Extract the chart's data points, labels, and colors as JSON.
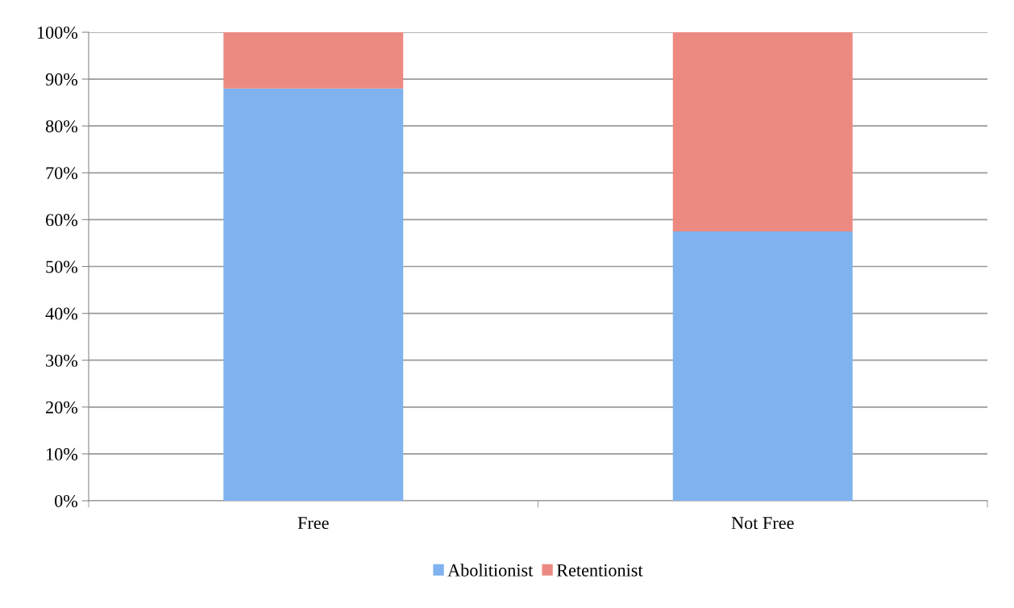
{
  "chart_data": {
    "type": "bar",
    "stacked": true,
    "categories": [
      "Free",
      "Not Free"
    ],
    "series": [
      {
        "name": "Abolitionist",
        "color": "#7fb2ee",
        "values": [
          88,
          57.5
        ]
      },
      {
        "name": "Retentionist",
        "color": "#ec8a82",
        "values": [
          12,
          42.5
        ]
      }
    ],
    "ylim": [
      0,
      100
    ],
    "yticks": [
      {
        "value": 0,
        "label": "0%"
      },
      {
        "value": 10,
        "label": "10%"
      },
      {
        "value": 20,
        "label": "20%"
      },
      {
        "value": 30,
        "label": "30%"
      },
      {
        "value": 40,
        "label": "40%"
      },
      {
        "value": 50,
        "label": "50%"
      },
      {
        "value": 60,
        "label": "60%"
      },
      {
        "value": 70,
        "label": "70%"
      },
      {
        "value": 80,
        "label": "80%"
      },
      {
        "value": 90,
        "label": "90%"
      },
      {
        "value": 100,
        "label": "100%"
      }
    ],
    "grid": "y",
    "legend": "bottom"
  }
}
